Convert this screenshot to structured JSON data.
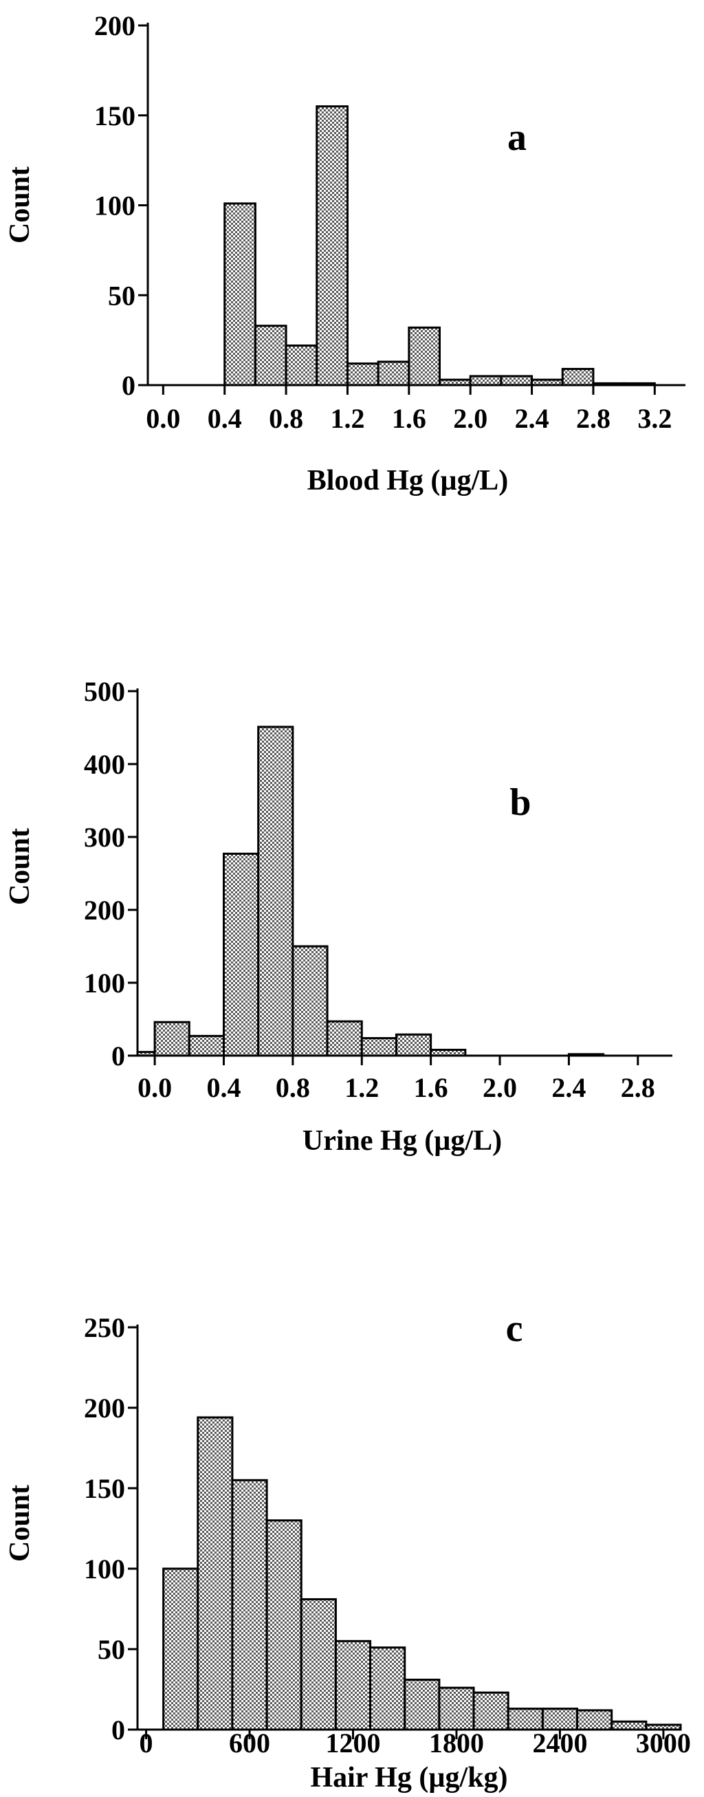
{
  "chart_data": [
    {
      "type": "bar",
      "title": "",
      "panel_label": "a",
      "xlabel": "Blood Hg (µg/L)",
      "ylabel": "Count",
      "ylim": [
        0,
        200
      ],
      "yticks": [
        0,
        50,
        100,
        150,
        200
      ],
      "xlim": [
        -0.1,
        3.4
      ],
      "xticks": [
        0.0,
        0.4,
        0.8,
        1.2,
        1.6,
        2.0,
        2.4,
        2.8,
        3.2
      ],
      "xtick_labels": [
        "0.0",
        "0.4",
        "0.8",
        "1.2",
        "1.6",
        "2.0",
        "2.4",
        "2.8",
        "3.2"
      ],
      "bin_width": 0.2,
      "bins": [
        {
          "start": 0.4,
          "end": 0.6,
          "value": 101
        },
        {
          "start": 0.6,
          "end": 0.8,
          "value": 33
        },
        {
          "start": 0.8,
          "end": 1.0,
          "value": 22
        },
        {
          "start": 1.0,
          "end": 1.2,
          "value": 155
        },
        {
          "start": 1.2,
          "end": 1.4,
          "value": 12
        },
        {
          "start": 1.4,
          "end": 1.6,
          "value": 13
        },
        {
          "start": 1.6,
          "end": 1.8,
          "value": 32
        },
        {
          "start": 1.8,
          "end": 2.0,
          "value": 3
        },
        {
          "start": 2.0,
          "end": 2.2,
          "value": 5
        },
        {
          "start": 2.2,
          "end": 2.4,
          "value": 5
        },
        {
          "start": 2.4,
          "end": 2.6,
          "value": 3
        },
        {
          "start": 2.6,
          "end": 2.8,
          "value": 9
        },
        {
          "start": 2.8,
          "end": 3.0,
          "value": 1
        },
        {
          "start": 3.0,
          "end": 3.2,
          "value": 1
        }
      ]
    },
    {
      "type": "bar",
      "title": "",
      "panel_label": "b",
      "xlabel": "Urine Hg (µg/L)",
      "ylabel": "Count",
      "ylim": [
        0,
        500
      ],
      "yticks": [
        0,
        100,
        200,
        300,
        400,
        500
      ],
      "xlim": [
        -0.1,
        3.0
      ],
      "xticks": [
        0.0,
        0.4,
        0.8,
        1.2,
        1.6,
        2.0,
        2.4,
        2.8
      ],
      "xtick_labels": [
        "0.0",
        "0.4",
        "0.8",
        "1.2",
        "1.6",
        "2.0",
        "2.4",
        "2.8"
      ],
      "bin_width": 0.2,
      "bins": [
        {
          "start": -0.1,
          "end": 0.0,
          "value": 5
        },
        {
          "start": 0.0,
          "end": 0.2,
          "value": 46
        },
        {
          "start": 0.2,
          "end": 0.4,
          "value": 27
        },
        {
          "start": 0.4,
          "end": 0.6,
          "value": 277
        },
        {
          "start": 0.6,
          "end": 0.8,
          "value": 451
        },
        {
          "start": 0.8,
          "end": 1.0,
          "value": 150
        },
        {
          "start": 1.0,
          "end": 1.2,
          "value": 47
        },
        {
          "start": 1.2,
          "end": 1.4,
          "value": 24
        },
        {
          "start": 1.4,
          "end": 1.6,
          "value": 29
        },
        {
          "start": 1.6,
          "end": 1.8,
          "value": 8
        },
        {
          "start": 2.4,
          "end": 2.6,
          "value": 2
        }
      ]
    },
    {
      "type": "bar",
      "title": "",
      "panel_label": "c",
      "xlabel": "Hair Hg (µg/kg)",
      "ylabel": "Count",
      "ylim": [
        0,
        250
      ],
      "yticks": [
        0,
        50,
        100,
        150,
        200,
        250
      ],
      "xlim": [
        -50,
        3100
      ],
      "xticks": [
        0,
        600,
        1200,
        1800,
        2400,
        3000
      ],
      "xtick_labels": [
        "0",
        "600",
        "1200",
        "1800",
        "2400",
        "3000"
      ],
      "bin_width": 200,
      "bins": [
        {
          "start": 100,
          "end": 300,
          "value": 100
        },
        {
          "start": 300,
          "end": 500,
          "value": 194
        },
        {
          "start": 500,
          "end": 700,
          "value": 155
        },
        {
          "start": 700,
          "end": 900,
          "value": 130
        },
        {
          "start": 900,
          "end": 1100,
          "value": 81
        },
        {
          "start": 1100,
          "end": 1300,
          "value": 55
        },
        {
          "start": 1300,
          "end": 1500,
          "value": 51
        },
        {
          "start": 1500,
          "end": 1700,
          "value": 31
        },
        {
          "start": 1700,
          "end": 1900,
          "value": 26
        },
        {
          "start": 1900,
          "end": 2100,
          "value": 23
        },
        {
          "start": 2100,
          "end": 2300,
          "value": 13
        },
        {
          "start": 2300,
          "end": 2500,
          "value": 13
        },
        {
          "start": 2500,
          "end": 2700,
          "value": 12
        },
        {
          "start": 2700,
          "end": 2900,
          "value": 5
        },
        {
          "start": 2900,
          "end": 3100,
          "value": 3
        }
      ]
    }
  ]
}
